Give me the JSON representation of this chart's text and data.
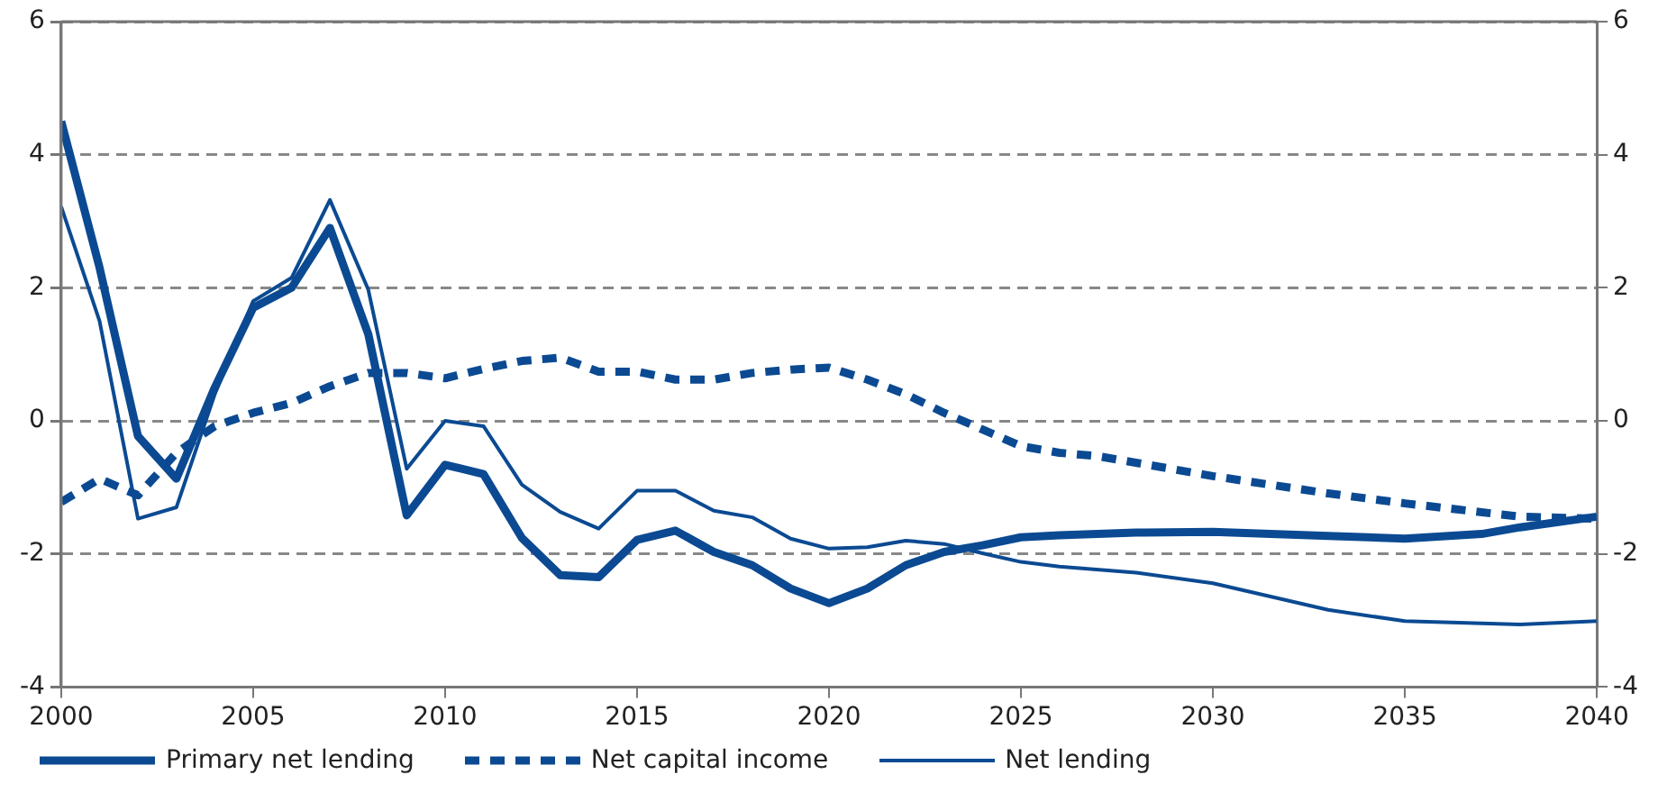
{
  "chart_data": {
    "type": "line",
    "series": [
      {
        "name": "Primary net lending",
        "color": "#0b4a92",
        "line_style": "solid",
        "x": [
          2000,
          2001,
          2002,
          2003,
          2004,
          2005,
          2006,
          2007,
          2008,
          2009,
          2010,
          2011,
          2012,
          2013,
          2014,
          2015,
          2016,
          2017,
          2018,
          2019,
          2020,
          2021,
          2022,
          2023,
          2024,
          2025,
          2026,
          2028,
          2030,
          2033,
          2035,
          2037,
          2038,
          2040
        ],
        "values": [
          4.5,
          2.3,
          -0.23,
          -0.87,
          0.5,
          1.7,
          2.0,
          2.9,
          1.3,
          -1.42,
          -0.66,
          -0.8,
          -1.76,
          -2.32,
          -2.35,
          -1.79,
          -1.65,
          -1.97,
          -2.17,
          -2.52,
          -2.74,
          -2.52,
          -2.17,
          -1.97,
          -1.87,
          -1.75,
          -1.72,
          -1.68,
          -1.67,
          -1.73,
          -1.77,
          -1.7,
          -1.6,
          -1.44
        ]
      },
      {
        "name": "Net capital income",
        "color": "#0b4a92",
        "line_style": "dashed",
        "x": [
          2000,
          2001,
          2002,
          2003,
          2004,
          2005,
          2006,
          2007,
          2008,
          2009,
          2010,
          2011,
          2012,
          2013,
          2014,
          2015,
          2016,
          2017,
          2018,
          2019,
          2020,
          2021,
          2022,
          2023,
          2024,
          2025,
          2026,
          2027,
          2030,
          2033,
          2035,
          2038,
          2040
        ],
        "values": [
          -1.22,
          -0.87,
          -1.12,
          -0.48,
          -0.08,
          0.12,
          0.27,
          0.52,
          0.72,
          0.72,
          0.64,
          0.78,
          0.9,
          0.95,
          0.74,
          0.74,
          0.62,
          0.62,
          0.72,
          0.77,
          0.8,
          0.62,
          0.4,
          0.12,
          -0.13,
          -0.38,
          -0.48,
          -0.53,
          -0.83,
          -1.09,
          -1.24,
          -1.44,
          -1.47
        ]
      },
      {
        "name": "Net lending",
        "color": "#0b4a92",
        "line_style": "solid",
        "x": [
          2000,
          2001,
          2002,
          2003,
          2004,
          2005,
          2006,
          2007,
          2008,
          2009,
          2010,
          2011,
          2012,
          2013,
          2014,
          2015,
          2016,
          2017,
          2018,
          2019,
          2020,
          2021,
          2022,
          2023,
          2024,
          2025,
          2026,
          2028,
          2030,
          2033,
          2035,
          2038,
          2040
        ],
        "values": [
          3.22,
          1.5,
          -1.47,
          -1.3,
          0.4,
          1.8,
          2.15,
          3.32,
          1.97,
          -0.72,
          0.0,
          -0.08,
          -0.96,
          -1.37,
          -1.62,
          -1.05,
          -1.05,
          -1.35,
          -1.45,
          -1.77,
          -1.92,
          -1.9,
          -1.8,
          -1.85,
          -1.99,
          -2.12,
          -2.19,
          -2.28,
          -2.44,
          -2.84,
          -3.01,
          -3.06,
          -3.01
        ]
      }
    ],
    "xlim": [
      2000,
      2040
    ],
    "xticks": [
      2000,
      2005,
      2010,
      2015,
      2020,
      2025,
      2030,
      2035,
      2040
    ],
    "ylim": [
      -4,
      6
    ],
    "yticks": [
      -4,
      -2,
      0,
      2,
      4,
      6
    ],
    "y2lim": [
      -4,
      6
    ],
    "y2ticks": [
      -4,
      -2,
      0,
      2,
      4,
      6
    ],
    "grid": "y",
    "legend": "bottom",
    "marker": "none"
  }
}
